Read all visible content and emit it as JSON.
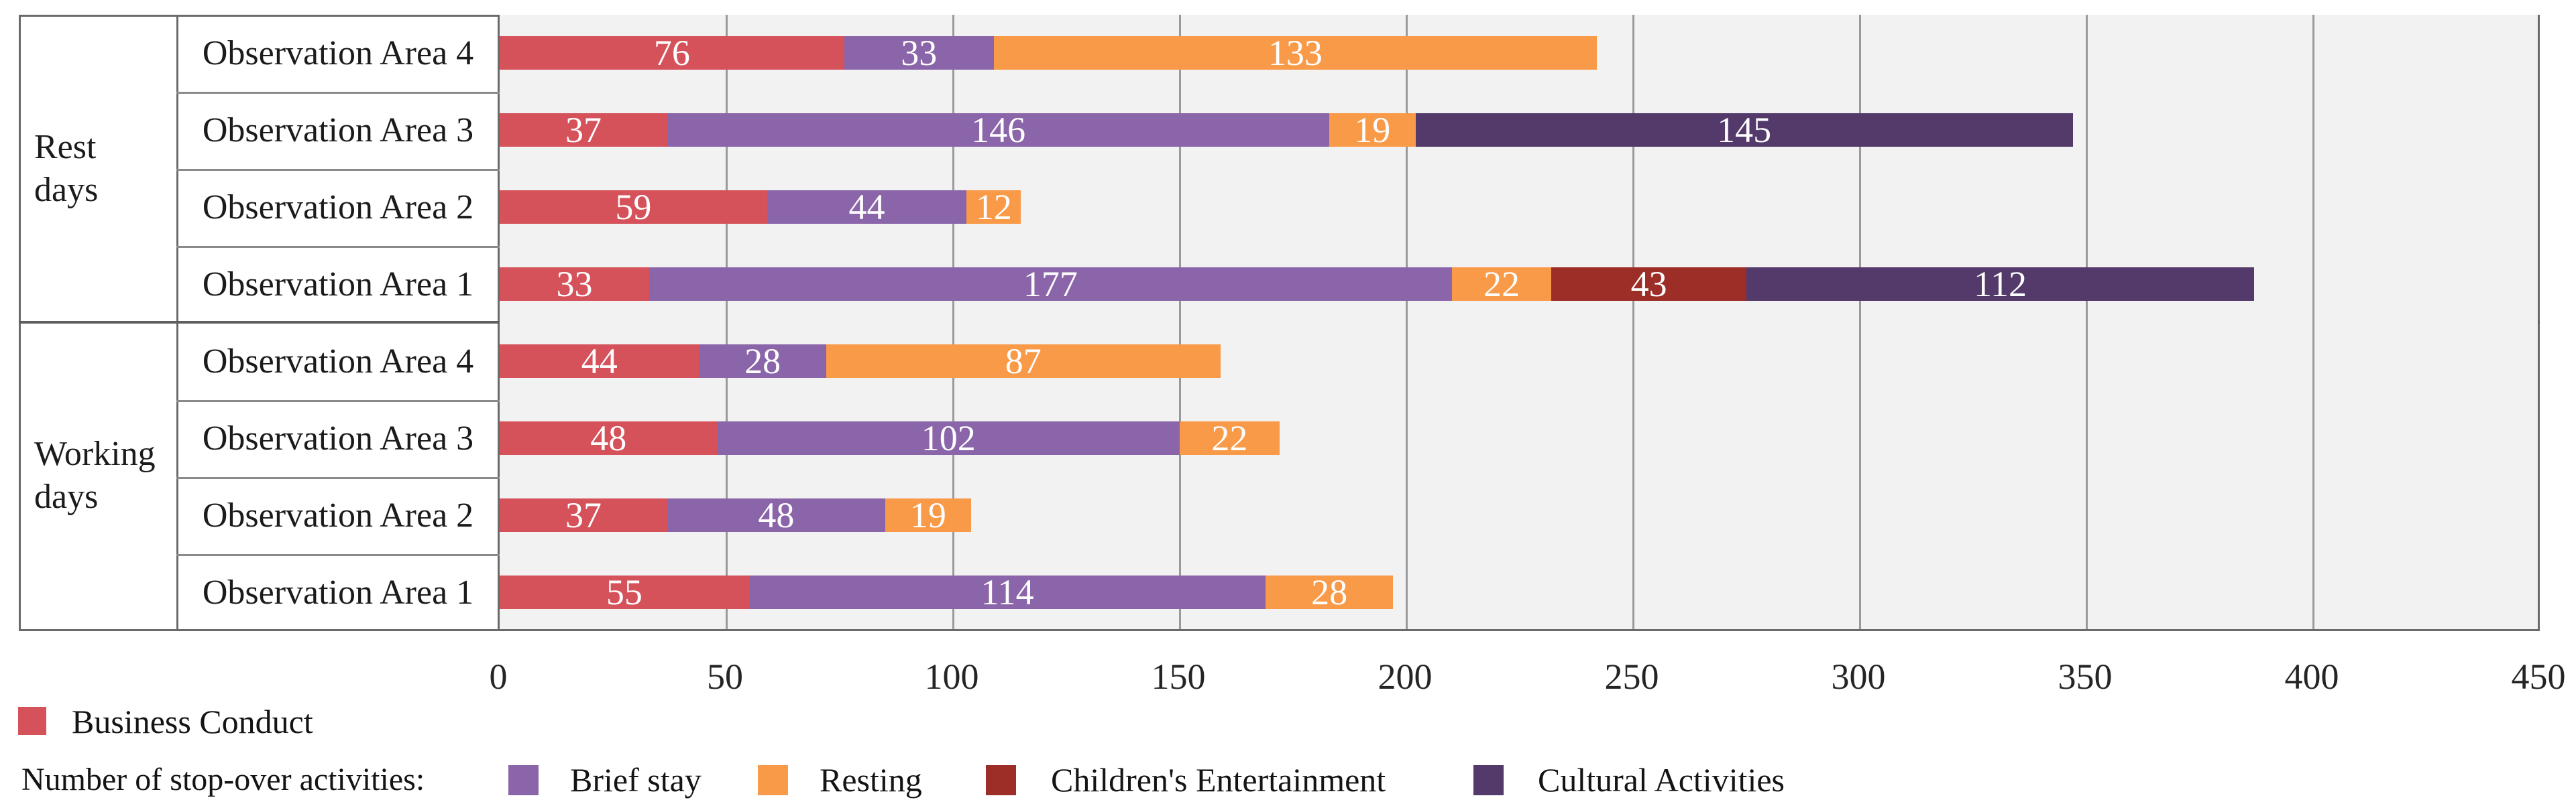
{
  "chart_data": {
    "type": "bar",
    "stacked": true,
    "orientation": "horizontal",
    "title": "",
    "xlabel": "",
    "ylabel": "",
    "xlim": [
      0,
      450
    ],
    "x_ticks": [
      0,
      50,
      100,
      150,
      200,
      250,
      300,
      350,
      400,
      450
    ],
    "grid": "vertical gridlines every 50 units on light gray plot background",
    "legend_position": "bottom",
    "legend_title": "Number of stop-over activities:",
    "series": [
      {
        "name": "Business Conduct",
        "color": "#d5525b"
      },
      {
        "name": "Brief stay",
        "color": "#8b65a9"
      },
      {
        "name": "Resting",
        "color": "#f99a49"
      },
      {
        "name": "Children's Entertainment",
        "color": "#9c2d27"
      },
      {
        "name": "Cultural Activities",
        "color": "#533a6b"
      }
    ],
    "groups": [
      {
        "label": "Rest\ndays",
        "label_plain": "Rest days",
        "rows": [
          {
            "label": "Observation Area 4",
            "values": [
              76,
              33,
              133,
              0,
              0
            ]
          },
          {
            "label": "Observation Area 3",
            "values": [
              37,
              146,
              19,
              0,
              145
            ]
          },
          {
            "label": "Observation Area 2",
            "values": [
              59,
              44,
              12,
              0,
              0
            ]
          },
          {
            "label": "Observation Area 1",
            "values": [
              33,
              177,
              22,
              43,
              112
            ]
          }
        ]
      },
      {
        "label": "Working\ndays",
        "label_plain": "Working days",
        "rows": [
          {
            "label": "Observation Area 4",
            "values": [
              44,
              28,
              87,
              0,
              0
            ]
          },
          {
            "label": "Observation Area 3",
            "values": [
              48,
              102,
              22,
              0,
              0
            ]
          },
          {
            "label": "Observation Area 2",
            "values": [
              37,
              48,
              19,
              0,
              0
            ]
          },
          {
            "label": "Observation Area 1",
            "values": [
              55,
              114,
              28,
              0,
              0
            ]
          }
        ]
      }
    ]
  }
}
